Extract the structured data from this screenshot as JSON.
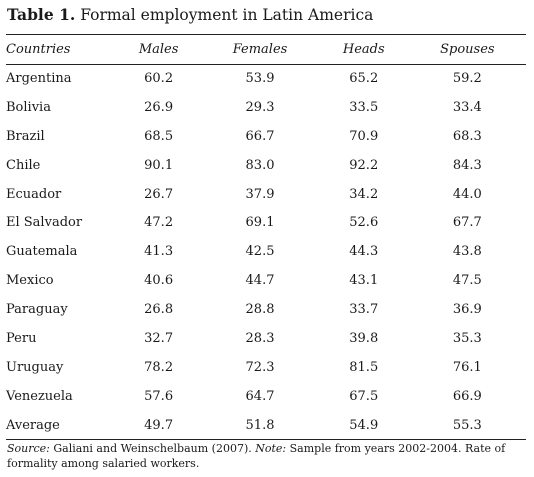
{
  "title": {
    "label": "Table 1.",
    "text": "Formal employment in Latin America"
  },
  "columns": [
    "Countries",
    "Males",
    "Females",
    "Heads",
    "Spouses"
  ],
  "rows": [
    [
      "Argentina",
      "60.2",
      "53.9",
      "65.2",
      "59.2"
    ],
    [
      "Bolivia",
      "26.9",
      "29.3",
      "33.5",
      "33.4"
    ],
    [
      "Brazil",
      "68.5",
      "66.7",
      "70.9",
      "68.3"
    ],
    [
      "Chile",
      "90.1",
      "83.0",
      "92.2",
      "84.3"
    ],
    [
      "Ecuador",
      "26.7",
      "37.9",
      "34.2",
      "44.0"
    ],
    [
      "El Salvador",
      "47.2",
      "69.1",
      "52.6",
      "67.7"
    ],
    [
      "Guatemala",
      "41.3",
      "42.5",
      "44.3",
      "43.8"
    ],
    [
      "Mexico",
      "40.6",
      "44.7",
      "43.1",
      "47.5"
    ],
    [
      "Paraguay",
      "26.8",
      "28.8",
      "33.7",
      "36.9"
    ],
    [
      "Peru",
      "32.7",
      "28.3",
      "39.8",
      "35.3"
    ],
    [
      "Uruguay",
      "78.2",
      "72.3",
      "81.5",
      "76.1"
    ],
    [
      "Venezuela",
      "57.6",
      "64.7",
      "67.5",
      "66.9"
    ],
    [
      "Average",
      "49.7",
      "51.8",
      "54.9",
      "55.3"
    ]
  ],
  "note": {
    "source_label": "Source:",
    "source_text": " Galiani and Weinschelbaum (2007). ",
    "note_label": "Note:",
    "note_text": " Sample from years 2002-2004. Rate of formality among salaried workers."
  }
}
